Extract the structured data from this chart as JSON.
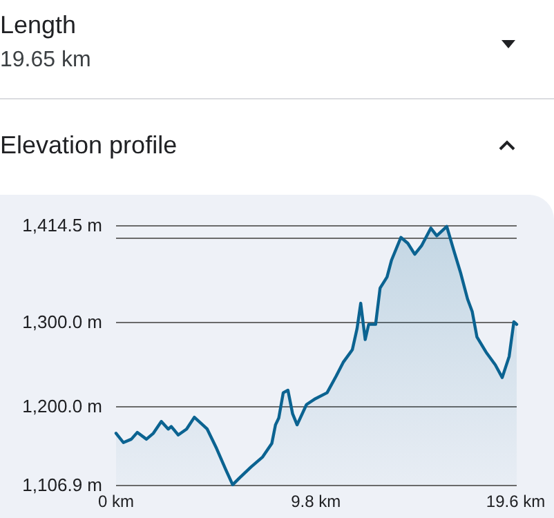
{
  "chart_data": {
    "type": "area",
    "title": "Elevation profile",
    "annotations": [
      "Length",
      "19.65 km"
    ],
    "x": [
      0,
      0.36,
      0.75,
      1.04,
      1.49,
      1.83,
      2.22,
      2.56,
      2.71,
      3.05,
      3.46,
      3.84,
      4.25,
      4.47,
      4.93,
      5.38,
      5.72,
      6.05,
      6.62,
      7.19,
      7.64,
      7.82,
      7.98,
      8.2,
      8.43,
      8.66,
      8.88,
      9.34,
      9.78,
      10.35,
      10.8,
      11.14,
      11.59,
      11.82,
      12.0,
      12.22,
      12.39,
      12.73,
      12.95,
      13.29,
      13.51,
      13.97,
      14.31,
      14.65,
      14.98,
      15.44,
      15.73,
      16.22,
      16.56,
      16.9,
      17.24,
      17.47,
      17.7,
      18.15,
      18.6,
      18.94,
      19.28,
      19.51,
      19.65
    ],
    "series": [
      {
        "color": "#0b6391",
        "values": [
          1168,
          1157,
          1161,
          1169,
          1161,
          1168,
          1182,
          1173,
          1176,
          1166,
          1173,
          1187,
          1178,
          1173,
          1150,
          1125,
          1107,
          1115,
          1128,
          1140,
          1156,
          1178,
          1186,
          1216,
          1219,
          1191,
          1178,
          1202,
          1209,
          1216,
          1236,
          1252,
          1267,
          1292,
          1322,
          1279,
          1297,
          1297,
          1340,
          1353,
          1373,
          1400,
          1393,
          1380,
          1390,
          1411,
          1402,
          1413,
          1385,
          1358,
          1327,
          1312,
          1282,
          1264,
          1249,
          1234,
          1259,
          1300,
          1297
        ]
      }
    ],
    "xlim": [
      0,
      19.65
    ],
    "xticks": [
      {
        "value": 0,
        "label": "0 km"
      },
      {
        "value": 9.8,
        "label": "9.8 km"
      },
      {
        "value": 19.6,
        "label": "19.6 km"
      }
    ],
    "ylim": [
      1106.9,
      1414.5
    ],
    "yticks": [
      {
        "value": 1106.9,
        "label": "1,106.9 m"
      },
      {
        "value": 1200,
        "label": "1,200.0 m"
      },
      {
        "value": 1300,
        "label": "1,300.0 m"
      },
      {
        "value": 1400,
        "label": null
      },
      {
        "value": 1414.5,
        "label": "1,414.5 m"
      }
    ],
    "grid": "y",
    "marker": "none",
    "line_style": "solid"
  }
}
